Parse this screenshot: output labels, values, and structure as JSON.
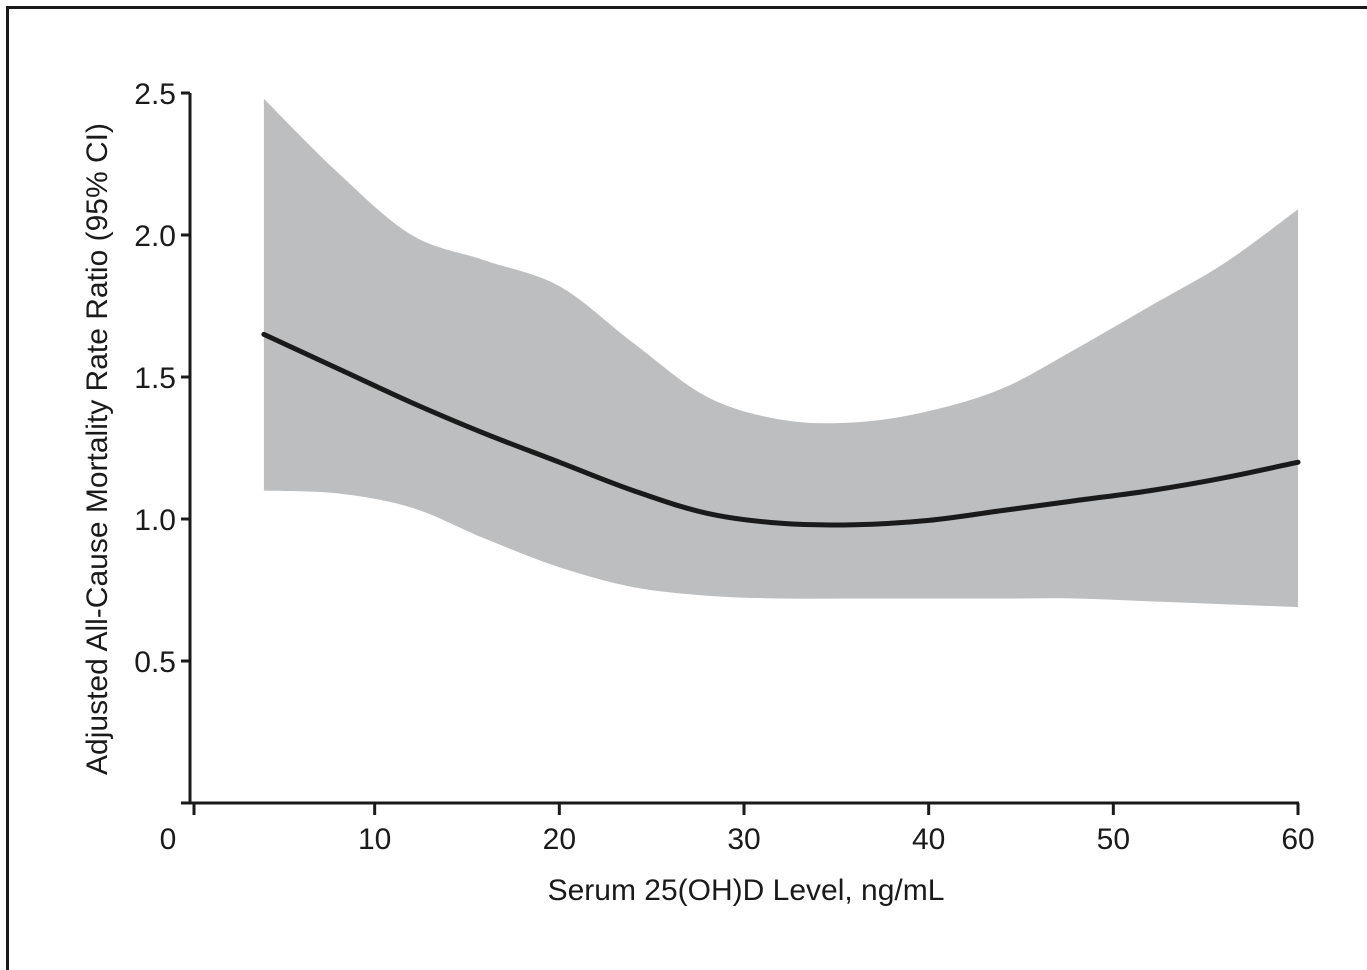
{
  "chart_data": {
    "type": "line",
    "title": "",
    "xlabel": "Serum 25(OH)D Level, ng/mL",
    "ylabel": "Adjusted All-Cause Mortality Rate Ratio (95% CI)",
    "xlim": [
      0,
      60
    ],
    "ylim": [
      0,
      2.5
    ],
    "x_ticks": [
      "0",
      "10",
      "20",
      "30",
      "40",
      "50",
      "60"
    ],
    "y_ticks": [
      "0.5",
      "1.0",
      "1.5",
      "2.0",
      "2.5"
    ],
    "grid": false,
    "series": [
      {
        "line_color": "#1a1a1a",
        "band_color": "#bcbec0",
        "x": [
          4,
          8,
          12,
          16,
          20,
          24,
          28,
          32,
          36,
          40,
          44,
          48,
          52,
          56,
          60
        ],
        "y": [
          1.65,
          1.53,
          1.41,
          1.3,
          1.2,
          1.1,
          1.02,
          0.985,
          0.98,
          0.995,
          1.03,
          1.065,
          1.1,
          1.145,
          1.2
        ],
        "lower": [
          1.1,
          1.09,
          1.04,
          0.93,
          0.83,
          0.76,
          0.73,
          0.72,
          0.72,
          0.72,
          0.72,
          0.72,
          0.71,
          0.7,
          0.69
        ],
        "upper": [
          2.48,
          2.22,
          2.0,
          1.91,
          1.82,
          1.62,
          1.43,
          1.35,
          1.34,
          1.38,
          1.46,
          1.6,
          1.75,
          1.9,
          2.09
        ]
      }
    ]
  }
}
